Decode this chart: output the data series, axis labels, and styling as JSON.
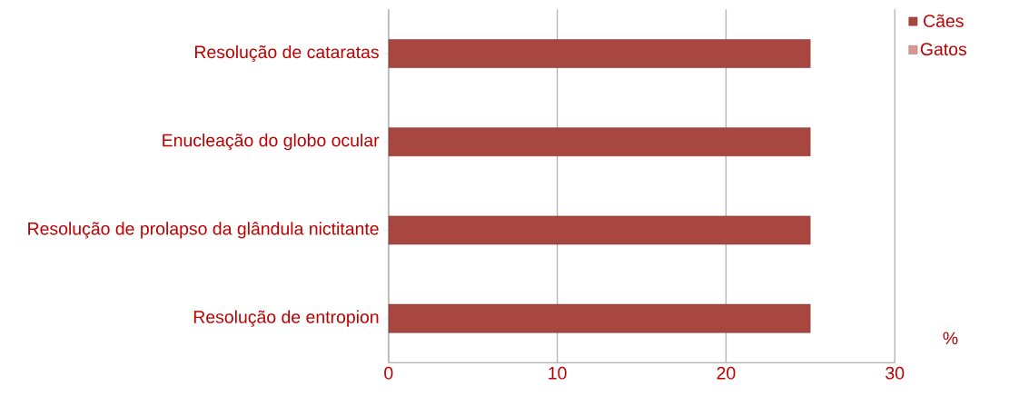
{
  "chart_data": {
    "type": "bar",
    "orientation": "horizontal",
    "xlabel": "%",
    "categories": [
      "Resolução de cataratas",
      "Enucleação do globo ocular",
      "Resolução de prolapso da glândula nictitante",
      "Resolução de entropion"
    ],
    "series": [
      {
        "name": "Cães",
        "color": "#a84640",
        "values": [
          25,
          25,
          25,
          25
        ]
      },
      {
        "name": "Gatos",
        "color": "#d99694",
        "values": [
          0,
          0,
          0,
          0
        ]
      }
    ],
    "xlim": [
      0,
      30
    ],
    "xticks": [
      0,
      10,
      20,
      30
    ],
    "grid": "x",
    "legend": "top right"
  }
}
